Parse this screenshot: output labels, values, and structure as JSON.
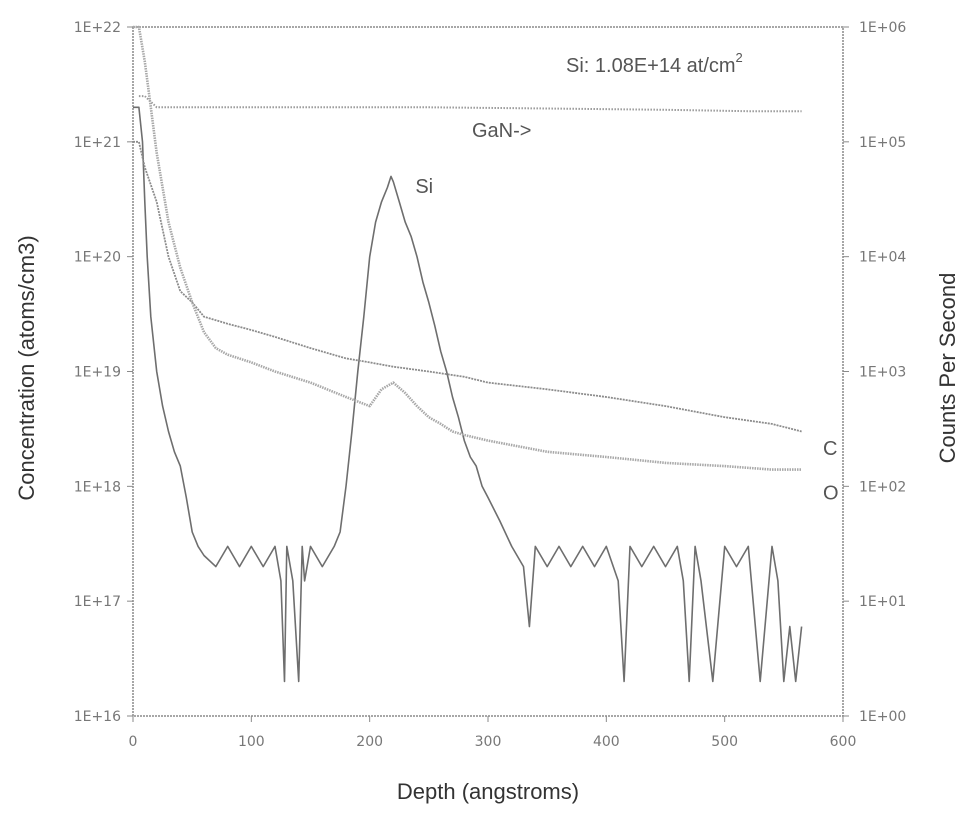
{
  "chart_data": {
    "type": "line",
    "xlabel": "Depth (angstroms)",
    "ylabel": "Concentration (atoms/cm3)",
    "y2label": "Counts Per Second",
    "xlim": [
      0,
      600
    ],
    "ylim": [
      1e+16,
      1e+22
    ],
    "y2lim": [
      1,
      1000000.0
    ],
    "yscale": "log",
    "y2scale": "log",
    "grid": false,
    "x_ticks": [
      "0",
      "100",
      "200",
      "300",
      "400",
      "500",
      "600"
    ],
    "y_ticks": [
      "1E+16",
      "1E+17",
      "1E+18",
      "1E+19",
      "1E+20",
      "1E+21",
      "1E+22"
    ],
    "y2_ticks": [
      "1E+00",
      "1E+01",
      "1E+02",
      "1E+03",
      "1E+04",
      "1E+05",
      "1E+06"
    ],
    "annotations": {
      "dose": "Si: 1.08E+14 at/cm",
      "dose_sup": "2",
      "gan": "GaN->"
    },
    "colors": {
      "frame": "#8a8a8a",
      "Si": "#6e6e6e",
      "C": "#8c8c8c",
      "O": "#a8a8a8",
      "GaN": "#9a9a9a",
      "text": "#555555"
    },
    "series": [
      {
        "name": "GaN->",
        "axis": "right",
        "x": [
          5,
          10,
          20,
          40,
          80,
          150,
          250,
          350,
          450,
          520,
          565
        ],
        "values": [
          250000,
          250000,
          200000,
          200000,
          200000,
          200000,
          200000,
          195000,
          190000,
          185000,
          185000
        ]
      },
      {
        "name": "Si",
        "axis": "left",
        "x": [
          0,
          5,
          8,
          10,
          12,
          15,
          20,
          25,
          30,
          35,
          40,
          45,
          50,
          55,
          60,
          70,
          80,
          90,
          100,
          110,
          120,
          125,
          128,
          130,
          135,
          140,
          143,
          145,
          150,
          160,
          170,
          175,
          180,
          185,
          190,
          195,
          200,
          205,
          210,
          215,
          218,
          220,
          225,
          230,
          235,
          240,
          245,
          250,
          255,
          260,
          265,
          270,
          275,
          280,
          285,
          290,
          295,
          300,
          310,
          320,
          330,
          335,
          340,
          350,
          360,
          370,
          380,
          390,
          400,
          410,
          415,
          420,
          430,
          440,
          450,
          460,
          465,
          470,
          475,
          480,
          490,
          500,
          510,
          520,
          530,
          540,
          545,
          550,
          555,
          560,
          565
        ],
        "values": [
          2e+21,
          2e+21,
          1e+21,
          3e+20,
          1e+20,
          3e+19,
          1e+19,
          5e+18,
          3e+18,
          2e+18,
          1.5e+18,
          8e+17,
          4e+17,
          3e+17,
          2.5e+17,
          2e+17,
          3e+17,
          2e+17,
          3e+17,
          2e+17,
          3e+17,
          1.5e+17,
          2e+16,
          3e+17,
          1.5e+17,
          2e+16,
          3e+17,
          1.5e+17,
          3e+17,
          2e+17,
          3e+17,
          4e+17,
          1e+18,
          3e+18,
          1e+19,
          3e+19,
          1e+20,
          2e+20,
          3e+20,
          4e+20,
          5e+20,
          4.5e+20,
          3e+20,
          2e+20,
          1.5e+20,
          1e+20,
          6e+19,
          4e+19,
          2.5e+19,
          1.5e+19,
          1e+19,
          6e+18,
          4e+18,
          2.5e+18,
          1.8e+18,
          1.5e+18,
          1e+18,
          8e+17,
          5e+17,
          3e+17,
          2e+17,
          6e+16,
          3e+17,
          2e+17,
          3e+17,
          2e+17,
          3e+17,
          2e+17,
          3e+17,
          1.5e+17,
          2e+16,
          3e+17,
          2e+17,
          3e+17,
          2e+17,
          3e+17,
          1.5e+17,
          2e+16,
          3e+17,
          1.5e+17,
          2e+16,
          3e+17,
          2e+17,
          3e+17,
          2e+16,
          3e+17,
          1.5e+17,
          2e+16,
          6e+16,
          2e+16,
          6e+16
        ]
      },
      {
        "name": "C",
        "axis": "left",
        "x": [
          0,
          5,
          10,
          20,
          30,
          40,
          50,
          60,
          70,
          80,
          100,
          120,
          150,
          180,
          200,
          220,
          250,
          280,
          300,
          350,
          400,
          450,
          500,
          540,
          565
        ],
        "values": [
          1e+21,
          1e+21,
          6e+20,
          3e+20,
          1e+20,
          5e+19,
          4e+19,
          3e+19,
          2.8e+19,
          2.6e+19,
          2.3e+19,
          2e+19,
          1.6e+19,
          1.3e+19,
          1.2e+19,
          1.1e+19,
          1e+19,
          9e+18,
          8e+18,
          7e+18,
          6e+18,
          5e+18,
          4e+18,
          3.5e+18,
          3e+18
        ]
      },
      {
        "name": "O",
        "axis": "left",
        "x": [
          0,
          5,
          10,
          15,
          20,
          25,
          30,
          40,
          50,
          60,
          70,
          80,
          100,
          120,
          150,
          180,
          200,
          210,
          220,
          230,
          240,
          250,
          260,
          270,
          280,
          300,
          350,
          400,
          450,
          500,
          540,
          565
        ],
        "values": [
          1e+22,
          1e+22,
          5e+21,
          2e+21,
          8e+20,
          4e+20,
          2e+20,
          8e+19,
          4e+19,
          2.2e+19,
          1.6e+19,
          1.4e+19,
          1.2e+19,
          1e+19,
          8e+18,
          6e+18,
          5e+18,
          7e+18,
          8e+18,
          6.5e+18,
          5e+18,
          4e+18,
          3.5e+18,
          3e+18,
          2.8e+18,
          2.5e+18,
          2e+18,
          1.8e+18,
          1.6e+18,
          1.5e+18,
          1.4e+18,
          1.4e+18
        ]
      }
    ]
  }
}
